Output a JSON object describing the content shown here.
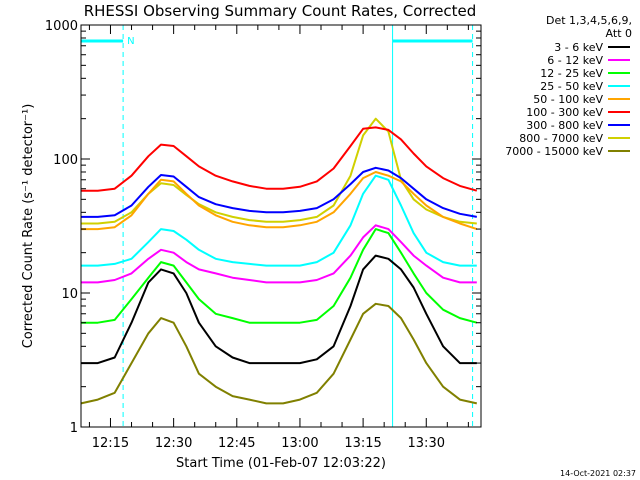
{
  "chart_data": {
    "type": "line",
    "title": "RHESSI Observing Summary Count Rates, Corrected",
    "xlabel": "Start Time (01-Feb-07 12:03:22)",
    "ylabel": "Corrected Count Rate (s⁻¹ detector⁻¹)",
    "yscale": "log",
    "ylim": [
      1,
      1000
    ],
    "xlim": [
      "12:08",
      "13:43"
    ],
    "xticks": [
      "12:15",
      "12:30",
      "12:45",
      "13:00",
      "13:15",
      "13:30"
    ],
    "yticks": [
      "1",
      "10",
      "100",
      "1000"
    ],
    "grid": false,
    "legend_header": [
      "Det 1,3,4,5,6,9,",
      "Att 0"
    ],
    "legend_position": "top-right",
    "footer": "14-Oct-2021 02:37",
    "annotations": [
      {
        "text": "N",
        "color": "#00ffff"
      }
    ],
    "events": {
      "night_intervals": [
        [
          "12:08",
          "12:18"
        ],
        [
          "13:22",
          "13:41"
        ]
      ],
      "solid_vertical_lines": [
        "12:08",
        "13:22"
      ],
      "dashed_vertical_lines": [
        "12:18",
        "13:41"
      ]
    },
    "x": [
      "12:08",
      "12:12",
      "12:16",
      "12:20",
      "12:24",
      "12:27",
      "12:30",
      "12:33",
      "12:36",
      "12:40",
      "12:44",
      "12:48",
      "12:52",
      "12:56",
      "13:00",
      "13:04",
      "13:08",
      "13:12",
      "13:15",
      "13:18",
      "13:21",
      "13:24",
      "13:27",
      "13:30",
      "13:34",
      "13:38",
      "13:42"
    ],
    "series": [
      {
        "name": "3 - 6 keV",
        "color": "#000000",
        "values": [
          3,
          3,
          3.3,
          6,
          12,
          15,
          14,
          10,
          6,
          4,
          3.3,
          3,
          3,
          3,
          3,
          3.2,
          4,
          8,
          15,
          19,
          18,
          15,
          11,
          7,
          4,
          3,
          3
        ]
      },
      {
        "name": "6 - 12 keV",
        "color": "#ff00ff",
        "values": [
          12,
          12,
          12.5,
          14,
          18,
          21,
          20,
          17,
          15,
          14,
          13,
          12.5,
          12,
          12,
          12,
          12.5,
          14,
          19,
          26,
          32,
          30,
          24,
          19,
          16,
          13,
          12,
          12
        ]
      },
      {
        "name": "12 - 25 keV",
        "color": "#00ff00",
        "values": [
          6,
          6,
          6.3,
          9,
          13,
          17,
          16,
          12,
          9,
          7,
          6.5,
          6,
          6,
          6,
          6,
          6.3,
          8,
          13,
          21,
          30,
          28,
          20,
          14,
          10,
          7.5,
          6.5,
          6
        ]
      },
      {
        "name": "25 - 50 keV",
        "color": "#00ffff",
        "values": [
          16,
          16,
          16.5,
          18,
          24,
          30,
          29,
          25,
          21,
          18,
          17,
          16.5,
          16,
          16,
          16,
          17,
          20,
          32,
          55,
          75,
          70,
          45,
          28,
          20,
          17,
          16,
          16
        ]
      },
      {
        "name": "50 - 100 keV",
        "color": "#ffa500",
        "values": [
          30,
          30,
          31,
          38,
          55,
          70,
          68,
          55,
          45,
          38,
          34,
          32,
          31,
          31,
          32,
          34,
          40,
          55,
          72,
          80,
          75,
          68,
          55,
          45,
          37,
          33,
          30
        ]
      },
      {
        "name": "100 - 300 keV",
        "color": "#ff0000",
        "values": [
          58,
          58,
          60,
          75,
          105,
          128,
          125,
          105,
          88,
          75,
          68,
          63,
          60,
          60,
          62,
          68,
          85,
          125,
          168,
          172,
          165,
          140,
          110,
          88,
          72,
          63,
          58
        ]
      },
      {
        "name": "300 - 800 keV",
        "color": "#0000ff",
        "values": [
          37,
          37,
          38,
          45,
          62,
          76,
          74,
          62,
          52,
          46,
          43,
          41,
          40,
          40,
          41,
          43,
          50,
          65,
          80,
          86,
          82,
          72,
          60,
          50,
          43,
          39,
          37
        ]
      },
      {
        "name": "800 - 7000 keV",
        "color": "#d0d000",
        "values": [
          33,
          33,
          34,
          40,
          55,
          66,
          64,
          54,
          46,
          40,
          37,
          35,
          34,
          34,
          35,
          37,
          45,
          75,
          150,
          200,
          160,
          70,
          50,
          42,
          37,
          34,
          33
        ]
      },
      {
        "name": "7000 - 15000 keV",
        "color": "#808000",
        "values": [
          1.5,
          1.6,
          1.8,
          3,
          5,
          6.5,
          6,
          4,
          2.5,
          2,
          1.7,
          1.6,
          1.5,
          1.5,
          1.6,
          1.8,
          2.5,
          4.5,
          7,
          8.3,
          8,
          6.5,
          4.5,
          3,
          2,
          1.6,
          1.5
        ]
      }
    ]
  }
}
